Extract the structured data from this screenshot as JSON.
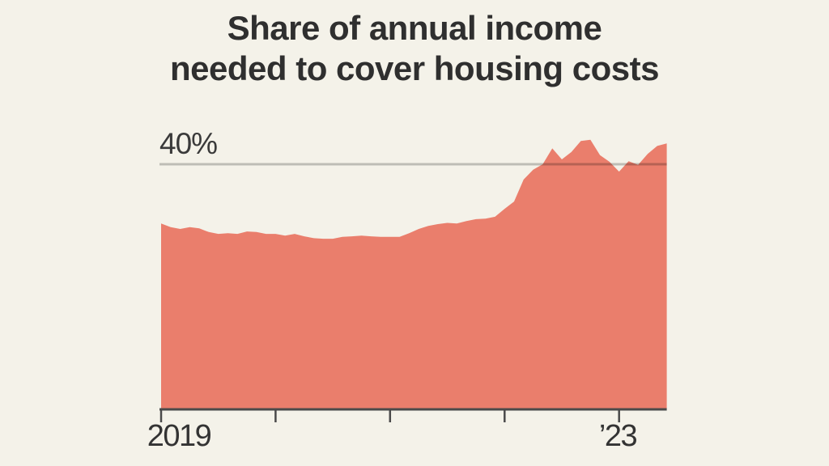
{
  "chart": {
    "title_line1": "Share of annual income",
    "title_line2": "needed to cover housing costs",
    "y_axis_label": "40%",
    "x_labels": [
      "2019",
      "’23"
    ]
  },
  "colors": {
    "background": "#F4F2E9",
    "area": "#EA7E6C",
    "gridline": "rgba(0,0,0,0.22)",
    "axis": "#4A4A4A",
    "text": "#2F2F2F"
  },
  "chart_data": {
    "type": "area",
    "title": "Share of annual income needed to cover housing costs",
    "xlabel": "",
    "ylabel": "Share of annual income needed to cover housing costs (%)",
    "x_unit": "month",
    "x_start": "2019-01",
    "x_end": "2023-06",
    "ylim": [
      0,
      45
    ],
    "grid": "single horizontal gridline at 40%",
    "gridline_value": 40,
    "legend": "none",
    "x_tick_years": [
      "2019",
      "2020",
      "2021",
      "2022",
      "2023"
    ],
    "visible_x_tick_labels": [
      "2019",
      "’23"
    ],
    "values": [
      30.3,
      29.7,
      29.4,
      29.7,
      29.5,
      28.9,
      28.6,
      28.7,
      28.6,
      29.0,
      28.9,
      28.6,
      28.6,
      28.3,
      28.6,
      28.2,
      27.9,
      27.8,
      27.8,
      28.1,
      28.2,
      28.3,
      28.2,
      28.1,
      28.1,
      28.1,
      28.7,
      29.4,
      29.9,
      30.2,
      30.4,
      30.3,
      30.7,
      31.0,
      31.1,
      31.4,
      32.7,
      33.9,
      37.5,
      39.1,
      40.0,
      42.6,
      40.8,
      42.0,
      43.8,
      44.0,
      41.5,
      40.4,
      38.8,
      40.5,
      39.9,
      41.7,
      43.0,
      43.4
    ]
  }
}
